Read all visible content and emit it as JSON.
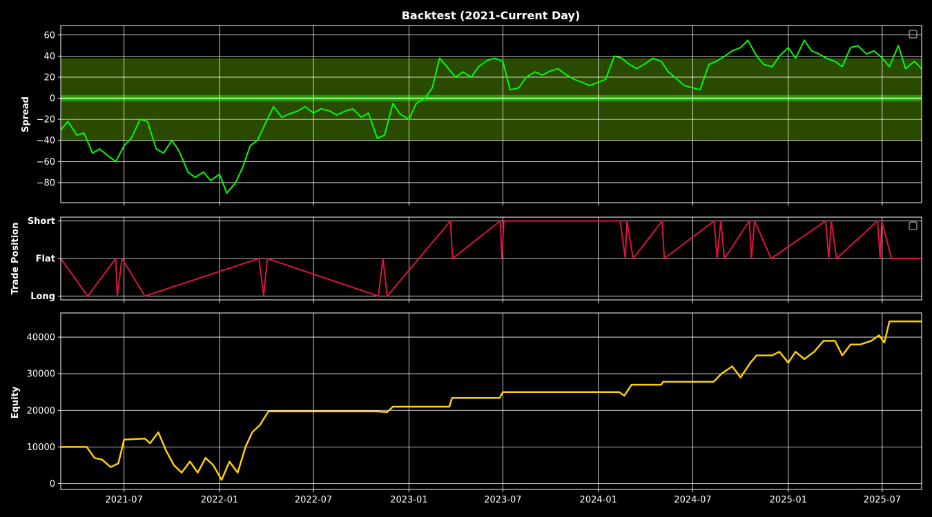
{
  "figure_title": "Backtest (2021-Current Day)",
  "colors": {
    "background": "#000000",
    "spread_line": "#00ff00",
    "band_fill": "#2a4a00",
    "mean_line": "#22dd00",
    "position_line": "#dc143c",
    "equity_line": "#ffd000",
    "grid": "#ffffff"
  },
  "chart_data": [
    {
      "type": "line",
      "panel": "spread",
      "ylabel": "Spread",
      "xlabel": "",
      "xlim": [
        "2021-03-01",
        "2025-09-15"
      ],
      "ylim": [
        -99,
        69
      ],
      "y_ticks": [
        60,
        40,
        20,
        0,
        -20,
        -40,
        -60,
        -80
      ],
      "y_tick_labels": [
        "60",
        "40",
        "20",
        "0",
        "−20",
        "−40",
        "−60",
        "−80"
      ],
      "x_ticks": [
        "2021-07-01",
        "2022-01-01",
        "2022-07-01",
        "2023-01-01",
        "2023-07-01",
        "2024-01-01",
        "2024-07-01",
        "2025-01-01",
        "2025-07-01"
      ],
      "grid": true,
      "legend": "top-right (empty)",
      "bands": [
        {
          "from": -40,
          "to": 38
        },
        {
          "from": -3,
          "to": 3
        }
      ],
      "mean_line": 0,
      "series": [
        {
          "x": [
            "2021-03-01",
            "2021-03-15",
            "2021-04-01",
            "2021-04-15",
            "2021-05-01",
            "2021-05-15",
            "2021-06-01",
            "2021-06-15",
            "2021-07-01",
            "2021-07-15",
            "2021-08-01",
            "2021-08-15",
            "2021-09-01",
            "2021-09-15",
            "2021-10-01",
            "2021-10-15",
            "2021-11-01",
            "2021-11-15",
            "2021-12-01",
            "2021-12-15",
            "2022-01-01",
            "2022-01-15",
            "2022-02-01",
            "2022-02-15",
            "2022-03-01",
            "2022-03-15",
            "2022-04-01",
            "2022-04-15",
            "2022-05-01",
            "2022-05-15",
            "2022-06-01",
            "2022-06-15",
            "2022-07-01",
            "2022-07-15",
            "2022-08-01",
            "2022-08-15",
            "2022-09-01",
            "2022-09-15",
            "2022-10-01",
            "2022-10-15",
            "2022-11-01",
            "2022-11-15",
            "2022-12-01",
            "2022-12-15",
            "2023-01-01",
            "2023-01-15",
            "2023-02-01",
            "2023-02-15",
            "2023-03-01",
            "2023-03-15",
            "2023-04-01",
            "2023-04-15",
            "2023-05-01",
            "2023-05-15",
            "2023-06-01",
            "2023-06-15",
            "2023-07-01",
            "2023-07-15",
            "2023-08-01",
            "2023-08-15",
            "2023-09-01",
            "2023-09-15",
            "2023-10-01",
            "2023-10-15",
            "2023-11-01",
            "2023-11-15",
            "2023-12-01",
            "2023-12-15",
            "2024-01-01",
            "2024-01-15",
            "2024-02-01",
            "2024-02-15",
            "2024-03-01",
            "2024-03-15",
            "2024-04-01",
            "2024-04-15",
            "2024-05-01",
            "2024-05-15",
            "2024-06-01",
            "2024-06-15",
            "2024-07-01",
            "2024-07-15",
            "2024-08-01",
            "2024-08-15",
            "2024-09-01",
            "2024-09-15",
            "2024-10-01",
            "2024-10-15",
            "2024-11-01",
            "2024-11-15",
            "2024-12-01",
            "2024-12-15",
            "2025-01-01",
            "2025-01-15",
            "2025-02-01",
            "2025-02-15",
            "2025-03-01",
            "2025-03-15",
            "2025-04-01",
            "2025-04-15",
            "2025-05-01",
            "2025-05-15",
            "2025-06-01",
            "2025-06-15",
            "2025-07-01",
            "2025-07-15",
            "2025-08-01",
            "2025-08-15",
            "2025-09-01",
            "2025-09-15"
          ],
          "y": [
            -30,
            -22,
            -35,
            -33,
            -52,
            -48,
            -55,
            -60,
            -45,
            -38,
            -20,
            -22,
            -48,
            -52,
            -40,
            -50,
            -70,
            -75,
            -70,
            -78,
            -72,
            -90,
            -80,
            -65,
            -45,
            -40,
            -22,
            -8,
            -18,
            -15,
            -12,
            -8,
            -14,
            -10,
            -12,
            -16,
            -12,
            -10,
            -18,
            -14,
            -38,
            -35,
            -5,
            -15,
            -20,
            -5,
            0,
            10,
            38,
            30,
            20,
            25,
            20,
            30,
            36,
            38,
            35,
            8,
            10,
            20,
            25,
            22,
            26,
            28,
            22,
            18,
            15,
            12,
            15,
            18,
            40,
            38,
            32,
            28,
            33,
            38,
            35,
            25,
            18,
            12,
            10,
            8,
            32,
            35,
            40,
            45,
            48,
            55,
            40,
            32,
            30,
            40,
            48,
            38,
            55,
            45,
            42,
            38,
            35,
            30,
            48,
            50,
            42,
            45,
            38,
            30,
            50,
            28,
            35,
            28
          ]
        }
      ]
    },
    {
      "type": "line",
      "panel": "position",
      "ylabel": "Trade Position",
      "xlabel": "",
      "xlim": [
        "2021-03-01",
        "2025-09-15"
      ],
      "ylim": [
        -1.1,
        1.1
      ],
      "y_ticks": [
        1,
        0,
        -1
      ],
      "y_tick_labels": [
        "Short",
        "Flat",
        "Long"
      ],
      "grid": true,
      "legend": "top-right (empty)",
      "series": [
        {
          "x": [
            "2021-03-01",
            "2021-04-22",
            "2021-06-15",
            "2021-06-18",
            "2021-06-27",
            "2021-08-10",
            "2022-03-18",
            "2022-03-27",
            "2022-04-03",
            "2022-11-03",
            "2022-11-12",
            "2022-11-20",
            "2023-03-22",
            "2023-03-26",
            "2023-06-26",
            "2023-06-29",
            "2023-07-03",
            "2024-02-12",
            "2024-02-22",
            "2024-02-25",
            "2024-03-08",
            "2024-05-03",
            "2024-05-07",
            "2024-08-11",
            "2024-08-17",
            "2024-08-24",
            "2024-08-31",
            "2024-10-18",
            "2024-10-22",
            "2024-10-28",
            "2024-11-29",
            "2025-03-14",
            "2025-03-20",
            "2025-03-25",
            "2025-04-04",
            "2025-06-22",
            "2025-06-27",
            "2025-06-30",
            "2025-07-19",
            "2025-09-15"
          ],
          "y": [
            0,
            -1,
            0,
            -1,
            0,
            -1,
            0,
            -1,
            0,
            -1,
            0,
            -1,
            1,
            0,
            1,
            0,
            1,
            1,
            0,
            1,
            0,
            1,
            0,
            1,
            0,
            1,
            0,
            1,
            0,
            1,
            0,
            1,
            0,
            1,
            0,
            1,
            0,
            1,
            0,
            0
          ]
        }
      ]
    },
    {
      "type": "line",
      "panel": "equity",
      "ylabel": "Equity",
      "xlabel": "",
      "xlim": [
        "2021-03-01",
        "2025-09-15"
      ],
      "ylim": [
        -1600,
        46600
      ],
      "y_ticks": [
        0,
        10000,
        20000,
        30000,
        40000
      ],
      "y_tick_labels": [
        "0",
        "10000",
        "20000",
        "30000",
        "40000"
      ],
      "x_ticks": [
        "2021-07-01",
        "2022-01-01",
        "2022-07-01",
        "2023-01-01",
        "2023-07-01",
        "2024-01-01",
        "2024-07-01",
        "2025-01-01",
        "2025-07-01"
      ],
      "x_tick_labels": [
        "2021-07",
        "2022-01",
        "2022-07",
        "2023-01",
        "2023-07",
        "2024-01",
        "2024-07",
        "2025-01",
        "2025-07"
      ],
      "grid": true,
      "series": [
        {
          "x": [
            "2021-03-01",
            "2021-04-20",
            "2021-05-05",
            "2021-05-20",
            "2021-06-05",
            "2021-06-20",
            "2021-07-01",
            "2021-08-10",
            "2021-08-20",
            "2021-09-05",
            "2021-09-20",
            "2021-10-05",
            "2021-10-20",
            "2021-11-05",
            "2021-11-20",
            "2021-12-05",
            "2021-12-20",
            "2022-01-05",
            "2022-01-20",
            "2022-02-05",
            "2022-02-20",
            "2022-03-05",
            "2022-03-20",
            "2022-04-05",
            "2022-07-01",
            "2022-11-01",
            "2022-11-20",
            "2022-12-01",
            "2023-03-20",
            "2023-03-25",
            "2023-06-25",
            "2023-07-01",
            "2023-07-05",
            "2024-02-10",
            "2024-02-20",
            "2024-03-05",
            "2024-03-10",
            "2024-05-01",
            "2024-05-05",
            "2024-08-10",
            "2024-08-25",
            "2024-09-15",
            "2024-10-01",
            "2024-10-20",
            "2024-11-01",
            "2024-12-01",
            "2024-12-15",
            "2025-01-01",
            "2025-01-15",
            "2025-02-01",
            "2025-02-20",
            "2025-03-10",
            "2025-04-01",
            "2025-04-15",
            "2025-05-01",
            "2025-05-20",
            "2025-06-10",
            "2025-06-25",
            "2025-07-05",
            "2025-07-15",
            "2025-07-20",
            "2025-09-15"
          ],
          "y": [
            10000,
            10000,
            7000,
            6500,
            4500,
            5500,
            12000,
            12300,
            11000,
            14000,
            9000,
            5000,
            3000,
            6000,
            3000,
            7000,
            5000,
            1000,
            6000,
            3000,
            10000,
            14000,
            16000,
            19700,
            19700,
            19700,
            19500,
            21000,
            21000,
            23400,
            23400,
            25000,
            25000,
            25000,
            24000,
            27000,
            27000,
            27000,
            27800,
            27800,
            30000,
            32000,
            29000,
            33000,
            35000,
            35000,
            36000,
            33000,
            36000,
            34000,
            36000,
            39000,
            39000,
            35000,
            38000,
            38000,
            39000,
            40500,
            38500,
            44300,
            44300,
            44300
          ]
        }
      ]
    }
  ]
}
